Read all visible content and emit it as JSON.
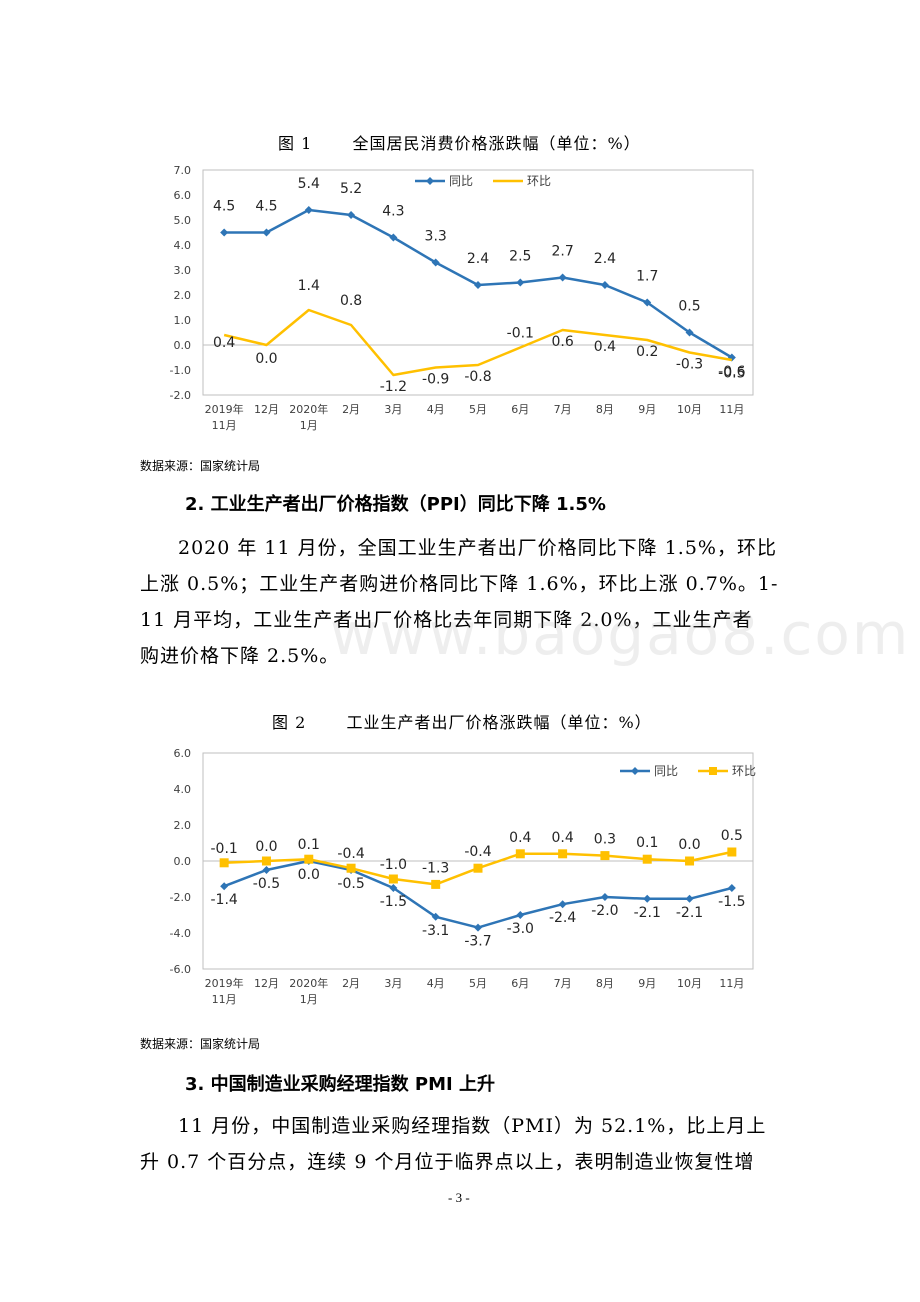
{
  "figure1": {
    "caption_num": "图 1",
    "caption_text": "全国居民消费价格涨跌幅（单位：%）",
    "source": "数据来源：国家统计局"
  },
  "heading2": "2. 工业生产者出厂价格指数（PPI）同比下降 1.5%",
  "para2": [
    "2020 年 11 月份，全国工业生产者出厂价格同比下降 1.5%，环比",
    "上涨 0.5%；工业生产者购进价格同比下降 1.6%，环比上涨 0.7%。1-",
    "11 月平均，工业生产者出厂价格比去年同期下降 2.0%，工业生产者",
    "购进价格下降 2.5%。"
  ],
  "figure2": {
    "caption_num": "图 2",
    "caption_text": "工业生产者出厂价格涨跌幅（单位：%）",
    "source": "数据来源：国家统计局"
  },
  "heading3": "3. 中国制造业采购经理指数 PMI 上升",
  "para3": [
    "11 月份，中国制造业采购经理指数（PMI）为 52.1%，比上月上",
    "升 0.7 个百分点，连续 9 个月位于临界点以上，表明制造业恢复性增"
  ],
  "page_number": "- 3 -",
  "watermark": "www.baogao8.com",
  "colors": {
    "yoy": "#2E75B6",
    "mom": "#FFC000"
  },
  "chart_data": [
    {
      "type": "line",
      "categories": [
        [
          "2019年",
          "11月"
        ],
        [
          "12月"
        ],
        [
          "2020年",
          "1月"
        ],
        [
          "2月"
        ],
        [
          "3月"
        ],
        [
          "4月"
        ],
        [
          "5月"
        ],
        [
          "6月"
        ],
        [
          "7月"
        ],
        [
          "8月"
        ],
        [
          "9月"
        ],
        [
          "10月"
        ],
        [
          "11月"
        ]
      ],
      "ylim": [
        -2.0,
        7.0
      ],
      "yticks": [
        -2.0,
        -1.0,
        0.0,
        1.0,
        2.0,
        3.0,
        4.0,
        5.0,
        6.0,
        7.0
      ],
      "legend_position": "top-center",
      "series": [
        {
          "name": "同比",
          "marker": "diamond",
          "color": "#2E75B6",
          "values": [
            4.5,
            4.5,
            5.4,
            5.2,
            4.3,
            3.3,
            2.4,
            2.5,
            2.7,
            2.4,
            1.7,
            0.5,
            -0.5
          ],
          "labels": [
            "4.5",
            "4.5",
            "5.4",
            "5.2",
            "4.3",
            "3.3",
            "2.4",
            "2.5",
            "2.7",
            "2.4",
            "1.7",
            "0.5",
            "-0.5"
          ]
        },
        {
          "name": "环比",
          "marker": "none",
          "color": "#FFC000",
          "values": [
            0.4,
            0.0,
            1.4,
            0.8,
            -1.2,
            -0.9,
            -0.8,
            -0.1,
            0.6,
            0.4,
            0.2,
            -0.3,
            -0.6
          ],
          "labels": [
            "0.4",
            "0.0",
            "1.4",
            "0.8",
            "-1.2",
            "-0.9",
            "-0.8",
            "-0.1",
            "0.6",
            "0.4",
            "0.2",
            "-0.3",
            "-0.6"
          ]
        }
      ]
    },
    {
      "type": "line",
      "categories": [
        [
          "2019年",
          "11月"
        ],
        [
          "12月"
        ],
        [
          "2020年",
          "1月"
        ],
        [
          "2月"
        ],
        [
          "3月"
        ],
        [
          "4月"
        ],
        [
          "5月"
        ],
        [
          "6月"
        ],
        [
          "7月"
        ],
        [
          "8月"
        ],
        [
          "9月"
        ],
        [
          "10月"
        ],
        [
          "11月"
        ]
      ],
      "ylim": [
        -6.0,
        6.0
      ],
      "yticks": [
        -6.0,
        -4.0,
        -2.0,
        0.0,
        2.0,
        4.0,
        6.0
      ],
      "legend_position": "top-right",
      "series": [
        {
          "name": "同比",
          "marker": "diamond",
          "color": "#2E75B6",
          "values": [
            -1.4,
            -0.5,
            0.0,
            -0.5,
            -1.5,
            -3.1,
            -3.7,
            -3.0,
            -2.4,
            -2.0,
            -2.1,
            -2.1,
            -1.5
          ],
          "labels": [
            "-1.4",
            "-0.5",
            "0.0",
            "-0.5",
            "-1.5",
            "-3.1",
            "-3.7",
            "-3.0",
            "-2.4",
            "-2.0",
            "-2.1",
            "-2.1",
            "-1.5"
          ]
        },
        {
          "name": "环比",
          "marker": "square",
          "color": "#FFC000",
          "values": [
            -0.1,
            0.0,
            0.1,
            -0.4,
            -1.0,
            -1.3,
            -0.4,
            0.4,
            0.4,
            0.3,
            0.1,
            0.0,
            0.5
          ],
          "labels": [
            "-0.1",
            "0.0",
            "0.1",
            "-0.4",
            "-1.0",
            "-1.3",
            "-0.4",
            "0.4",
            "0.4",
            "0.3",
            "0.1",
            "0.0",
            "0.5"
          ]
        }
      ]
    }
  ]
}
